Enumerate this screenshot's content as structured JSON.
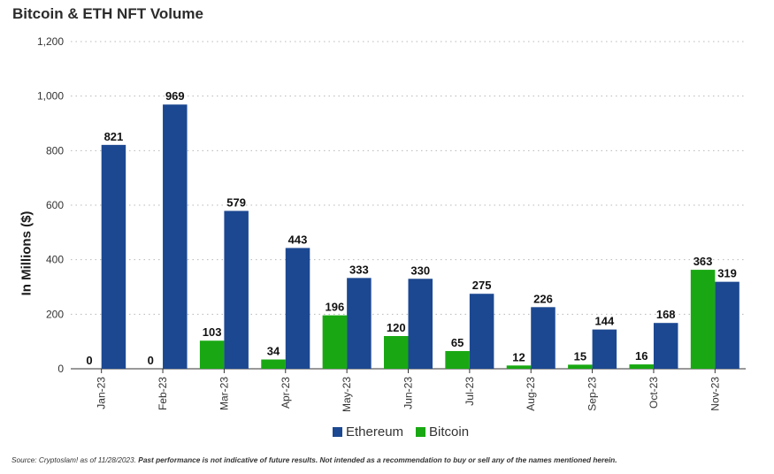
{
  "colors": {
    "ethereum": "#1c4891",
    "bitcoin": "#19a813",
    "grid": "#b8b8b8",
    "axis": "#333333"
  },
  "chart_data": {
    "type": "bar",
    "title": "Bitcoin & ETH NFT Volume",
    "ylabel": "In Millions ($)",
    "xlabel": "",
    "ylim": [
      0,
      1200
    ],
    "yticks": [
      0,
      200,
      400,
      600,
      800,
      1000,
      1200
    ],
    "ytick_labels": [
      "0",
      "200",
      "400",
      "600",
      "800",
      "1,000",
      "1,200"
    ],
    "grid": true,
    "legend": "bottom",
    "categories": [
      "Jan-23",
      "Feb-23",
      "Mar-23",
      "Apr-23",
      "May-23",
      "Jun-23",
      "Jul-23",
      "Aug-23",
      "Sep-23",
      "Oct-23",
      "Nov-23"
    ],
    "series": [
      {
        "name": "Bitcoin",
        "color": "#19a813",
        "values": [
          0,
          0,
          103,
          34,
          196,
          120,
          65,
          12,
          15,
          16,
          363
        ]
      },
      {
        "name": "Ethereum",
        "color": "#1c4891",
        "values": [
          821,
          969,
          579,
          443,
          333,
          330,
          275,
          226,
          144,
          168,
          319
        ]
      }
    ]
  },
  "legend": {
    "ethereum": "Ethereum",
    "bitcoin": "Bitcoin"
  },
  "footnote": {
    "source": "Source: Cryptoslam! as of 11/28/2023. ",
    "disclaimer": "Past performance is not indicative of future results. Not intended as a recommendation to buy or sell any of the names mentioned herein."
  }
}
